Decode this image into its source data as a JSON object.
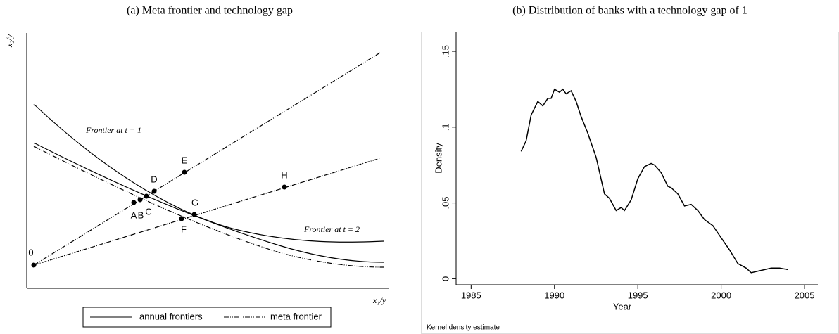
{
  "chart_data": [
    {
      "type": "diagram",
      "title": "(a) Meta frontier and technology gap",
      "x_label": "x₁/y",
      "y_label": "x₂/y",
      "annotations": [
        "Frontier at t = 1",
        "Frontier at t = 2"
      ],
      "points": [
        "0",
        "A",
        "B",
        "C",
        "D",
        "E",
        "F",
        "G",
        "H"
      ],
      "legend": [
        "annual frontiers",
        "meta frontier"
      ]
    },
    {
      "type": "line",
      "title": "(b) Distribution of banks with a technology gap of 1",
      "x_label": "Year",
      "y_label": "Density",
      "note": "Kernel density estimate",
      "color": "#000000",
      "x": [
        1988,
        1988.3,
        1988.6,
        1989,
        1989.3,
        1989.6,
        1989.8,
        1990,
        1990.3,
        1990.5,
        1990.7,
        1991,
        1991.3,
        1991.6,
        1992,
        1992.5,
        1993,
        1993.3,
        1993.7,
        1994,
        1994.2,
        1994.6,
        1995,
        1995.4,
        1995.8,
        1996,
        1996.4,
        1996.8,
        1997,
        1997.4,
        1997.8,
        1998.2,
        1998.6,
        1999,
        1999.5,
        2000,
        2000.5,
        2001,
        2001.5,
        2001.8,
        2002.2,
        2003,
        2003.5,
        2004
      ],
      "values": [
        0.084,
        0.091,
        0.108,
        0.117,
        0.114,
        0.119,
        0.119,
        0.125,
        0.123,
        0.125,
        0.122,
        0.124,
        0.117,
        0.107,
        0.096,
        0.08,
        0.056,
        0.053,
        0.045,
        0.047,
        0.045,
        0.052,
        0.066,
        0.074,
        0.076,
        0.075,
        0.07,
        0.061,
        0.06,
        0.056,
        0.048,
        0.049,
        0.045,
        0.039,
        0.035,
        0.027,
        0.019,
        0.01,
        0.007,
        0.004,
        0.005,
        0.007,
        0.007,
        0.006
      ],
      "xlim": [
        1984.1,
        2005.8
      ],
      "xticks": [
        1985,
        1990,
        1995,
        2000,
        2005
      ],
      "ylim": [
        -0.004,
        0.163
      ],
      "yticks": [
        0,
        {
          "value": 0.05,
          "label": ".05"
        },
        {
          "value": 0.1,
          "label": ".1"
        },
        {
          "value": 0.15,
          "label": ".15"
        }
      ]
    }
  ]
}
